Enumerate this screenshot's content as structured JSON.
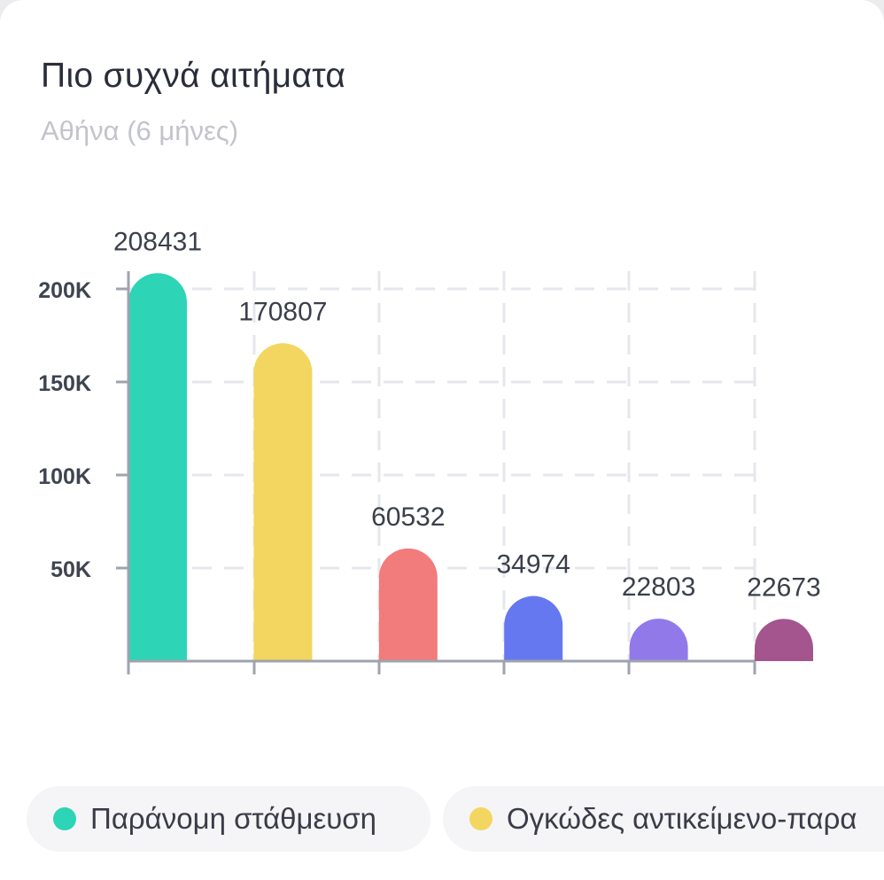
{
  "header": {
    "title": "Πιο συχνά αιτήματα",
    "subtitle": "Αθήνα (6 μήνες)"
  },
  "chart_data": {
    "type": "bar",
    "categories": [
      "Παράνομη στάθμευση",
      "Ογκώδες αντικείμενο-παρα",
      "",
      "",
      "",
      ""
    ],
    "values": [
      208431,
      170807,
      60532,
      34974,
      22803,
      22673
    ],
    "colors": [
      "#2dd4b6",
      "#f2d660",
      "#f27b7b",
      "#6578f0",
      "#9279ea",
      "#a4558e"
    ],
    "y_ticks": [
      {
        "value": 50000,
        "label": "50K"
      },
      {
        "value": 100000,
        "label": "100K"
      },
      {
        "value": 150000,
        "label": "150K"
      },
      {
        "value": 200000,
        "label": "200K"
      }
    ],
    "ylim": [
      0,
      200000
    ],
    "grid": true,
    "bar_shape": "rounded-top",
    "legend_position": "bottom"
  },
  "legend": {
    "items": [
      {
        "label": "Παράνομη στάθμευση",
        "color": "#2dd4b6"
      },
      {
        "label": "Ογκώδες αντικείμενο-παρα",
        "color": "#f2d660"
      }
    ]
  }
}
